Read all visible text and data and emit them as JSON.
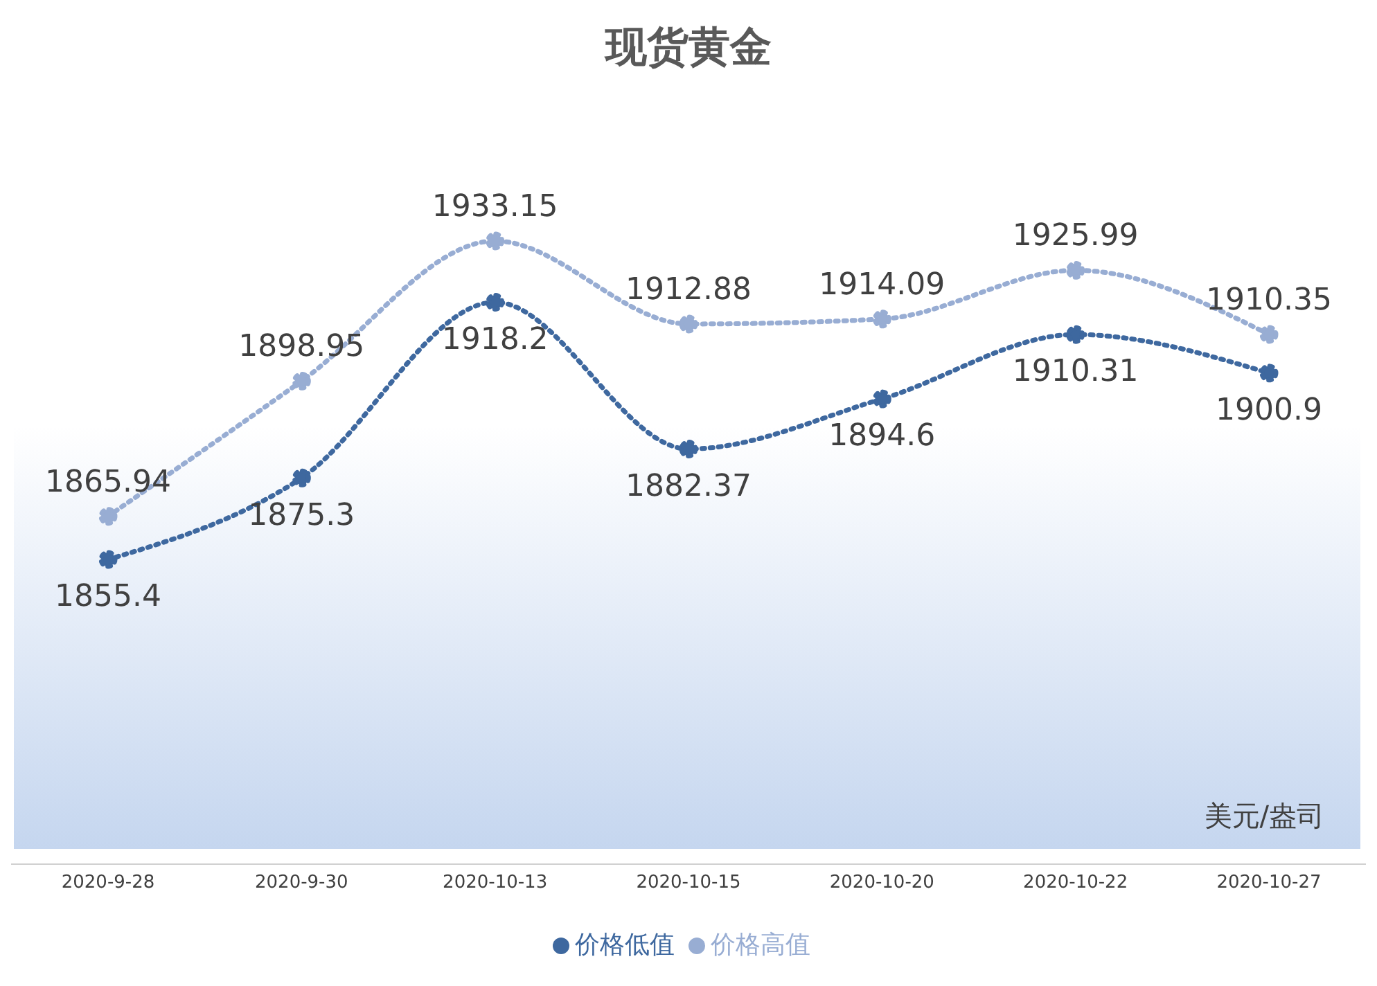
{
  "chart_data": {
    "type": "line",
    "title": "现货黄金",
    "categories": [
      "2020-9-28",
      "2020-9-30",
      "2020-10-13",
      "2020-10-15",
      "2020-10-20",
      "2020-10-22",
      "2020-10-27"
    ],
    "series": [
      {
        "name": "价格低值",
        "color": "#3e689f",
        "values": [
          1855.4,
          1875.3,
          1918.2,
          1882.37,
          1894.6,
          1910.31,
          1900.9
        ]
      },
      {
        "name": "价格高值",
        "color": "#98add3",
        "values": [
          1865.94,
          1898.95,
          1933.15,
          1912.88,
          1914.09,
          1925.99,
          1910.35
        ]
      }
    ],
    "annotations": [
      "美元/盎司"
    ],
    "data_labels": true,
    "grid": false,
    "legend": "bottom",
    "marker": "circle",
    "line_style": "dotted",
    "tick_labels": "x"
  }
}
